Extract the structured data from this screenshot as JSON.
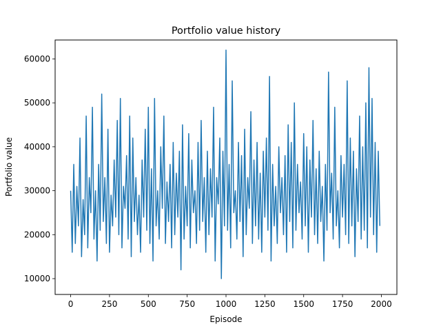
{
  "chart_data": {
    "type": "line",
    "title": "Portfolio value history",
    "xlabel": "Episode",
    "ylabel": "Portfolio value",
    "xlim": [
      -100,
      2100
    ],
    "ylim": [
      6400,
      64300
    ],
    "xticks": [
      0,
      250,
      500,
      750,
      1000,
      1250,
      1500,
      1750,
      2000
    ],
    "xtick_labels": [
      "0",
      "250",
      "500",
      "750",
      "1000",
      "1250",
      "1500",
      "1750",
      "2000"
    ],
    "yticks": [
      10000,
      20000,
      30000,
      40000,
      50000,
      60000
    ],
    "ytick_labels": [
      "10000",
      "20000",
      "30000",
      "40000",
      "50000",
      "60000"
    ],
    "grid": false,
    "legend": "none",
    "color": "#1f77b4",
    "series": [
      {
        "x_start": 0,
        "x_step": 10,
        "values": [
          30000,
          16000,
          36000,
          18000,
          31000,
          22000,
          42000,
          15000,
          28000,
          20000,
          47000,
          17000,
          33000,
          25000,
          49000,
          19000,
          30000,
          14000,
          36000,
          21000,
          52000,
          23000,
          33000,
          18000,
          44000,
          16000,
          29000,
          22000,
          37000,
          24000,
          46000,
          20000,
          51000,
          17000,
          31000,
          26000,
          38000,
          19000,
          47000,
          15000,
          42000,
          23000,
          33000,
          20000,
          29000,
          16000,
          37000,
          24000,
          44000,
          21000,
          49000,
          18000,
          35000,
          14000,
          51000,
          22000,
          30000,
          19000,
          40000,
          26000,
          47000,
          18000,
          32000,
          23000,
          36000,
          17000,
          41000,
          20000,
          34000,
          24000,
          39000,
          12000,
          45000,
          19000,
          31000,
          22000,
          43000,
          17000,
          37000,
          25000,
          30000,
          18000,
          41000,
          21000,
          46000,
          23000,
          33000,
          16000,
          39000,
          20000,
          35000,
          24000,
          49000,
          14000,
          33000,
          27000,
          42000,
          10000,
          39000,
          22000,
          62000,
          21000,
          36000,
          17000,
          55000,
          25000,
          30000,
          19000,
          41000,
          23000,
          38000,
          15000,
          44000,
          20000,
          33000,
          26000,
          48000,
          18000,
          37000,
          22000,
          41000,
          19000,
          34000,
          16000,
          39000,
          24000,
          42000,
          21000,
          56000,
          14000,
          36000,
          22000,
          31000,
          18000,
          40000,
          25000,
          33000,
          20000,
          38000,
          16000,
          45000,
          23000,
          41000,
          17000,
          50000,
          21000,
          36000,
          25000,
          32000,
          19000,
          43000,
          22000,
          40000,
          16000,
          37000,
          24000,
          46000,
          20000,
          35000,
          18000,
          39000,
          23000,
          31000,
          14000,
          36000,
          21000,
          57000,
          25000,
          34000,
          19000,
          49000,
          22000,
          30000,
          17000,
          38000,
          24000,
          36000,
          20000,
          55000,
          18000,
          42000,
          22000,
          39000,
          15000,
          35000,
          23000,
          47000,
          19000,
          40000,
          21000,
          50000,
          17000,
          58000,
          24000,
          51000,
          20000,
          41000,
          16000,
          39000,
          22000
        ]
      }
    ]
  }
}
